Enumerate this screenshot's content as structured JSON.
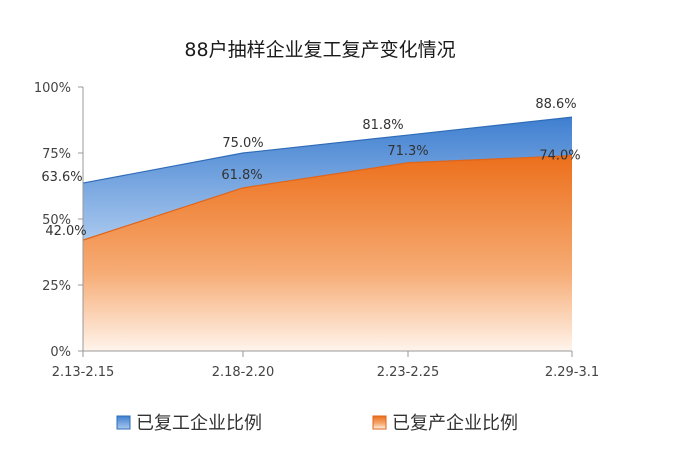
{
  "chart_data": {
    "type": "area",
    "title": "88户抽样企业复工复产变化情况",
    "categories": [
      "2.13-2.15",
      "2.18-2.20",
      "2.23-2.25",
      "2.29-3.1"
    ],
    "ylim": [
      0,
      100
    ],
    "yticks": [
      "0%",
      "25%",
      "50%",
      "75%",
      "100%"
    ],
    "grid": false,
    "legend_position": "bottom",
    "series": [
      {
        "name": "已复工企业比例",
        "values": [
          63.6,
          75.0,
          81.8,
          88.6
        ],
        "labels": [
          "63.6%",
          "75.0%",
          "81.8%",
          "88.6%"
        ],
        "color": "#4a86d4"
      },
      {
        "name": "已复产企业比例",
        "values": [
          42.0,
          61.8,
          71.3,
          74.0
        ],
        "labels": [
          "42.0%",
          "61.8%",
          "71.3%",
          "74.0%"
        ],
        "color": "#ee7a2a"
      }
    ]
  }
}
